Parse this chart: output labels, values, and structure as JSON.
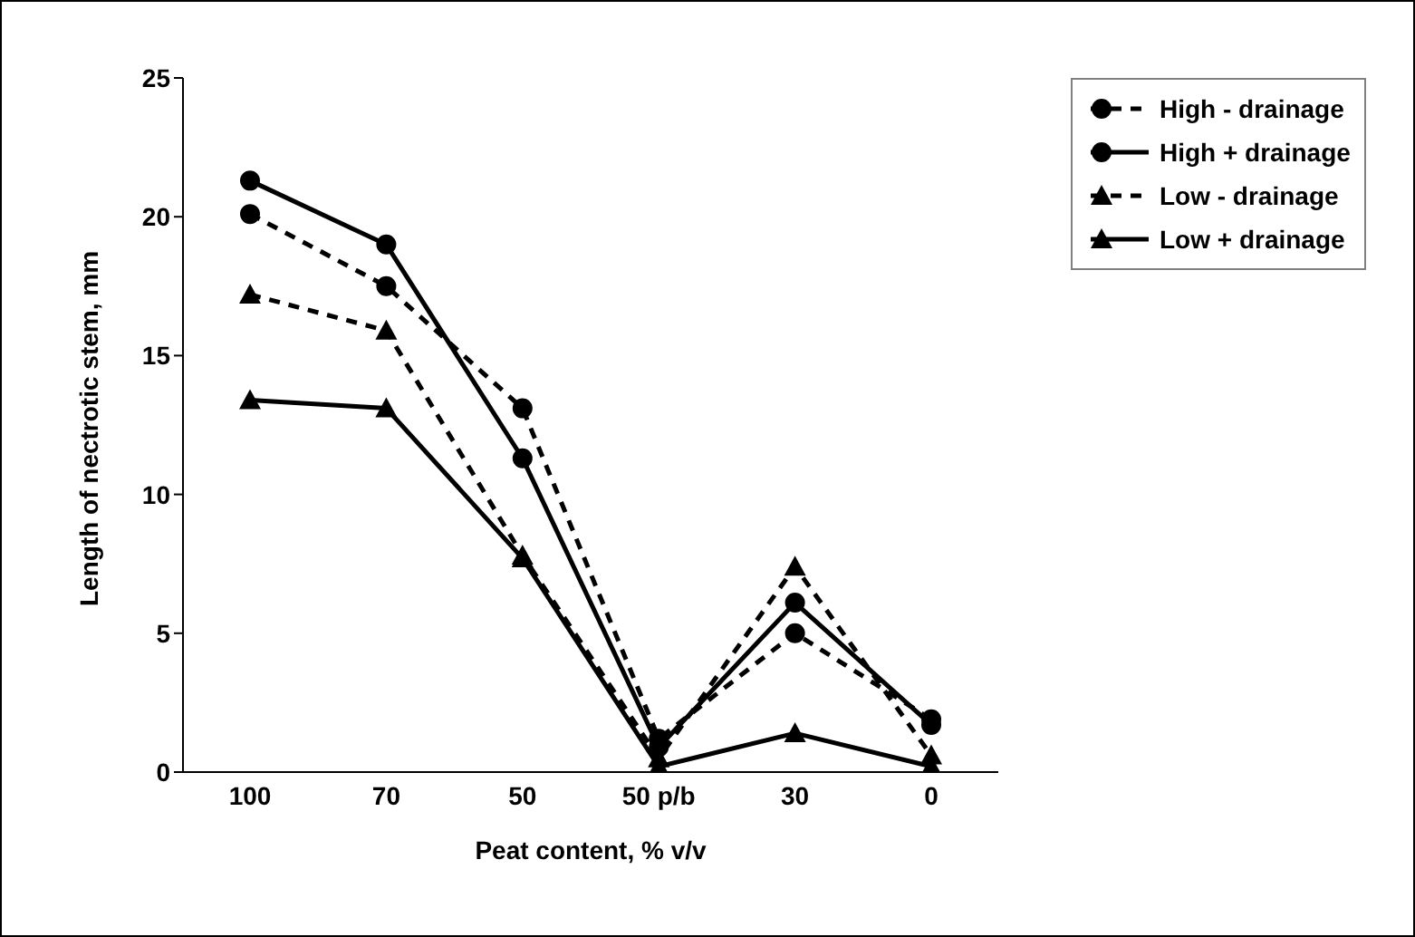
{
  "chart_data": {
    "type": "line",
    "xlabel": "Peat content, % v/v",
    "ylabel": "Length of nectrotic stem, mm",
    "categories": [
      "100",
      "70",
      "50",
      "50 p/b",
      "30",
      "0"
    ],
    "series": [
      {
        "name": "High - drainage",
        "color": "#000000",
        "marker": "circle",
        "line_style": "dashed",
        "values": [
          20.1,
          17.5,
          13.1,
          1.2,
          5.0,
          1.9
        ]
      },
      {
        "name": "High + drainage",
        "color": "#000000",
        "marker": "circle",
        "line_style": "solid",
        "values": [
          21.3,
          19.0,
          11.3,
          0.9,
          6.1,
          1.7
        ]
      },
      {
        "name": "Low - drainage",
        "color": "#000000",
        "marker": "triangle",
        "line_style": "dashed",
        "values": [
          17.2,
          15.9,
          7.8,
          0.5,
          7.4,
          0.6
        ]
      },
      {
        "name": "Low + drainage",
        "color": "#000000",
        "marker": "triangle",
        "line_style": "solid",
        "values": [
          13.4,
          13.1,
          7.7,
          0.2,
          1.4,
          0.2
        ]
      }
    ],
    "ylim": [
      0,
      25
    ],
    "yticks": [
      0,
      5,
      10,
      15,
      20,
      25
    ],
    "grid": false,
    "legend": "top right"
  }
}
